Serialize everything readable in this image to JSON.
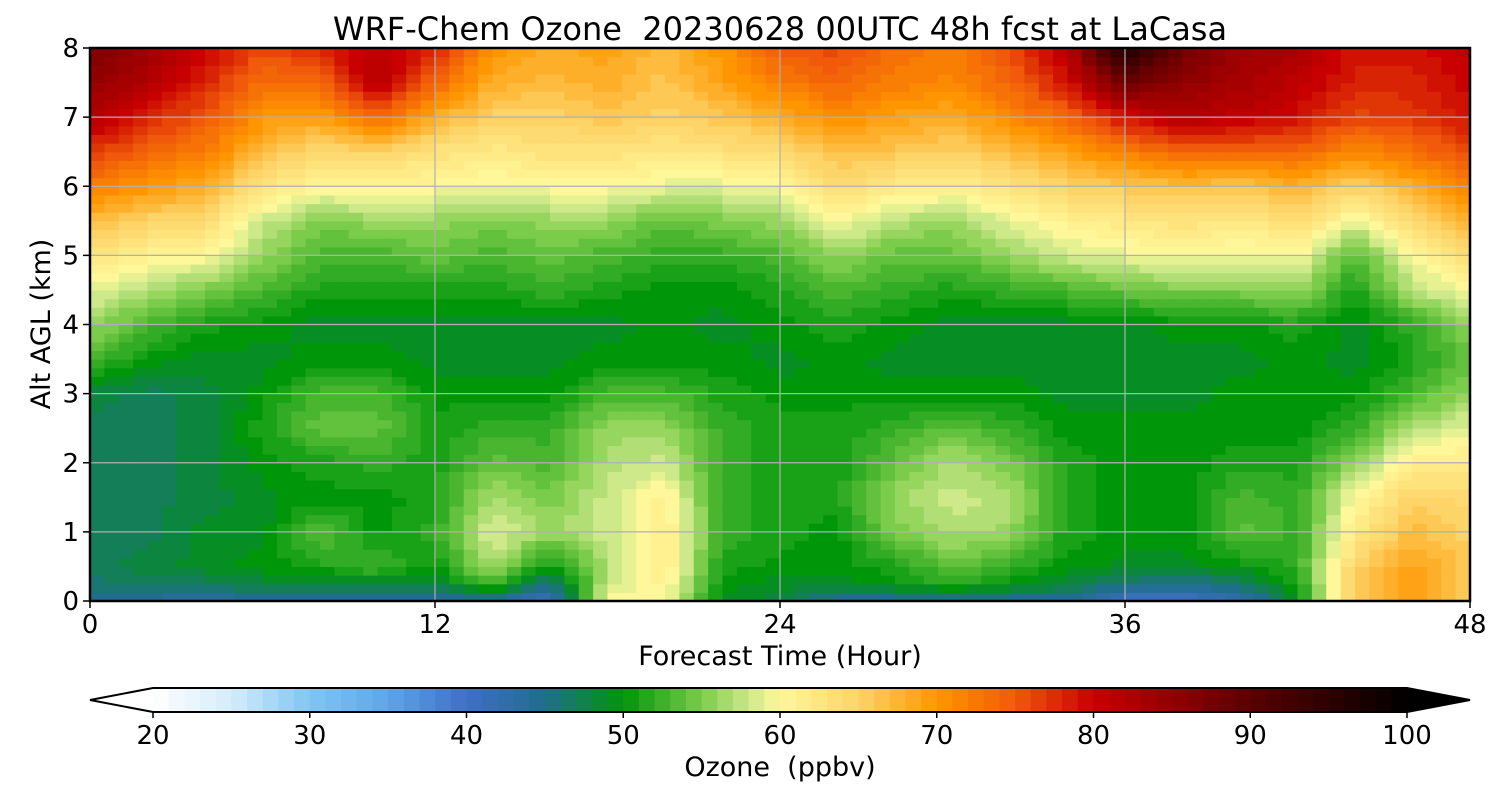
{
  "chart_data": {
    "type": "heatmap",
    "title": "WRF-Chem Ozone  20230628 00UTC 48h fcst at LaCasa",
    "xlabel": "Forecast Time (Hour)",
    "ylabel": "Alt AGL (km)",
    "xlim": [
      0,
      48
    ],
    "ylim": [
      0,
      8
    ],
    "xticks": [
      0,
      12,
      24,
      36,
      48
    ],
    "yticks": [
      0,
      1,
      2,
      3,
      4,
      5,
      6,
      7,
      8
    ],
    "grid": true,
    "x": [
      0,
      2,
      4,
      6,
      8,
      10,
      12,
      14,
      16,
      18,
      20,
      22,
      24,
      26,
      28,
      30,
      32,
      34,
      36,
      38,
      40,
      42,
      44,
      46,
      48
    ],
    "y": [
      0,
      0.25,
      0.5,
      1,
      1.5,
      2,
      2.5,
      3,
      3.5,
      4,
      4.5,
      5,
      5.5,
      6,
      6.5,
      7,
      7.5,
      8
    ],
    "z": [
      [
        44,
        44,
        43,
        44,
        44,
        44,
        44,
        44,
        40,
        60,
        60,
        49,
        48,
        44,
        44,
        44,
        44,
        44,
        40,
        40,
        42,
        49,
        66,
        69,
        66
      ],
      [
        46,
        47,
        47,
        48,
        48,
        48,
        48,
        53,
        45,
        58,
        61,
        50,
        49,
        49,
        50,
        52,
        50,
        48,
        46,
        45,
        46,
        51,
        66,
        70,
        66
      ],
      [
        47,
        48,
        49,
        50,
        51,
        53,
        50,
        57,
        50,
        57,
        62,
        51,
        50,
        50,
        51,
        54,
        52,
        50,
        49,
        49,
        50,
        52,
        65,
        69,
        66
      ],
      [
        47,
        47,
        49,
        49,
        54,
        50,
        52,
        59,
        56,
        58,
        62,
        52,
        51,
        50,
        55,
        57,
        56,
        51,
        50,
        50,
        54,
        52,
        62,
        67,
        65
      ],
      [
        47,
        47,
        48,
        49,
        50,
        50,
        51,
        57,
        55,
        58,
        61,
        52,
        51,
        51,
        56,
        58,
        57,
        51,
        50,
        50,
        53,
        52,
        60,
        65,
        64
      ],
      [
        47,
        47,
        48,
        50,
        51,
        52,
        51,
        54,
        53,
        57,
        58,
        52,
        51,
        51,
        54,
        57,
        55,
        51,
        50,
        50,
        51,
        51,
        56,
        61,
        62
      ],
      [
        47,
        47,
        48,
        51,
        54,
        54,
        51,
        52,
        52,
        56,
        56,
        52,
        51,
        51,
        52,
        54,
        52,
        50,
        50,
        50,
        50,
        50,
        52,
        57,
        59
      ],
      [
        48,
        47,
        48,
        50,
        53,
        53,
        50,
        50,
        50,
        53,
        53,
        51,
        50,
        50,
        50,
        50,
        50,
        49,
        49,
        49,
        50,
        50,
        50,
        53,
        56
      ],
      [
        53,
        50,
        49,
        49,
        50,
        50,
        49,
        49,
        49,
        50,
        50,
        50,
        49,
        50,
        49,
        49,
        49,
        49,
        49,
        49,
        49,
        50,
        49,
        51,
        54
      ],
      [
        56,
        53,
        51,
        50,
        49,
        49,
        49,
        49,
        49,
        49,
        50,
        49,
        50,
        51,
        50,
        49,
        49,
        49,
        49,
        50,
        50,
        51,
        49,
        52,
        56
      ],
      [
        59,
        57,
        55,
        53,
        51,
        51,
        51,
        51,
        52,
        51,
        50,
        50,
        51,
        53,
        52,
        51,
        52,
        53,
        54,
        55,
        55,
        56,
        51,
        57,
        60
      ],
      [
        63,
        61,
        60,
        56,
        53,
        53,
        54,
        53,
        54,
        53,
        52,
        52,
        53,
        56,
        54,
        54,
        56,
        58,
        59,
        60,
        59,
        60,
        53,
        60,
        64
      ],
      [
        67,
        65,
        64,
        58,
        55,
        56,
        56,
        55,
        56,
        56,
        54,
        55,
        56,
        60,
        57,
        56,
        59,
        61,
        62,
        63,
        62,
        64,
        59,
        64,
        68
      ],
      [
        72,
        70,
        68,
        63,
        60,
        61,
        60,
        59,
        60,
        60,
        59,
        59,
        60,
        64,
        62,
        61,
        63,
        65,
        66,
        67,
        66,
        68,
        65,
        68,
        72
      ],
      [
        77,
        74,
        72,
        67,
        64,
        65,
        63,
        62,
        63,
        63,
        62,
        63,
        64,
        67,
        66,
        65,
        67,
        69,
        72,
        74,
        74,
        74,
        71,
        73,
        76
      ],
      [
        82,
        78,
        75,
        70,
        69,
        74,
        68,
        65,
        65,
        66,
        65,
        66,
        68,
        71,
        69,
        68,
        71,
        74,
        79,
        82,
        81,
        79,
        76,
        77,
        79
      ],
      [
        85,
        82,
        78,
        73,
        74,
        82,
        74,
        68,
        67,
        68,
        66,
        69,
        72,
        74,
        72,
        71,
        74,
        79,
        88,
        85,
        83,
        81,
        78,
        78,
        80
      ],
      [
        87,
        84,
        80,
        76,
        78,
        82,
        78,
        70,
        68,
        69,
        67,
        70,
        75,
        76,
        73,
        72,
        76,
        82,
        97,
        88,
        84,
        83,
        79,
        79,
        81
      ]
    ],
    "colorbar": {
      "label": "Ozone  (ppbv)",
      "min": 20,
      "max": 100,
      "ticks": [
        20,
        30,
        40,
        50,
        60,
        70,
        80,
        90,
        100
      ],
      "extend": "both",
      "placement": "bottom",
      "stops": [
        {
          "value": 20,
          "color": "#ffffff"
        },
        {
          "value": 25,
          "color": "#d4ecfb"
        },
        {
          "value": 30,
          "color": "#7fc6f3"
        },
        {
          "value": 35,
          "color": "#5ea6e8"
        },
        {
          "value": 40,
          "color": "#3f6ec7"
        },
        {
          "value": 45,
          "color": "#1f6e8c"
        },
        {
          "value": 50,
          "color": "#00960a"
        },
        {
          "value": 55,
          "color": "#7bcc4a"
        },
        {
          "value": 58,
          "color": "#cde98a"
        },
        {
          "value": 60,
          "color": "#fff89a"
        },
        {
          "value": 65,
          "color": "#fdd468"
        },
        {
          "value": 70,
          "color": "#ff9600"
        },
        {
          "value": 75,
          "color": "#f05a0a"
        },
        {
          "value": 80,
          "color": "#c80000"
        },
        {
          "value": 90,
          "color": "#5a0000"
        },
        {
          "value": 100,
          "color": "#000000"
        }
      ]
    }
  }
}
